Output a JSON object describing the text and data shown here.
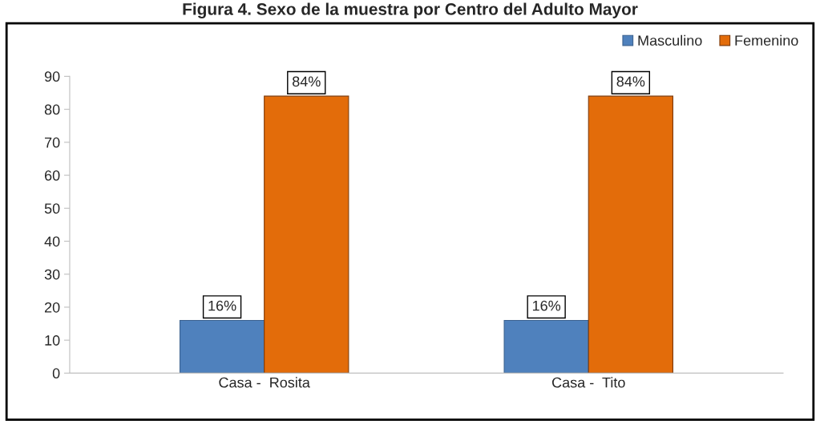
{
  "chart_data": {
    "type": "bar",
    "title": "Figura 4. Sexo de la muestra por Centro del Adulto Mayor",
    "categories": [
      "Casa -  Rosita",
      "Casa -  Tito"
    ],
    "series": [
      {
        "name": "Masculino",
        "color": "#4f81bd",
        "values": [
          16,
          16
        ],
        "value_labels": [
          "16%",
          "16%"
        ]
      },
      {
        "name": "Femenino",
        "color": "#e36c0a",
        "values": [
          84,
          84
        ],
        "value_labels": [
          "84%",
          "84%"
        ]
      }
    ],
    "ylim": [
      0,
      90
    ],
    "yticks": [
      0,
      10,
      20,
      30,
      40,
      50,
      60,
      70,
      80,
      90
    ],
    "grid": false,
    "legend": "top right"
  }
}
